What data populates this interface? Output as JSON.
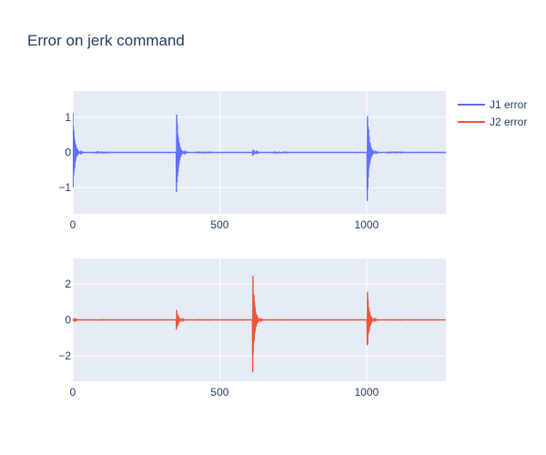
{
  "chart_data": {
    "type": "line",
    "title": "Error on jerk command",
    "legend_placement": "top-right",
    "grid": true,
    "colors": {
      "plot_bg": "#e5ecf6",
      "grid": "#ffffff",
      "text": "#2a3f5f"
    },
    "subplots": [
      {
        "xlim": [
          0,
          1270
        ],
        "ylim": [
          -1.75,
          1.75
        ],
        "xticks": [
          0,
          500,
          1000
        ],
        "yticks": [
          -1,
          0,
          1
        ],
        "ytick_labels": [
          "−1",
          "0",
          "1"
        ],
        "series": [
          {
            "name": "J1 error",
            "color": "#636efa",
            "baseline": 0,
            "events": [
              {
                "x": 0,
                "amp": 1.3
              },
              {
                "x": 352,
                "amp": 1.7
              },
              {
                "x": 612,
                "amp": 0.12
              },
              {
                "x": 1002,
                "amp": 1.6
              }
            ]
          }
        ]
      },
      {
        "xlim": [
          0,
          1270
        ],
        "ylim": [
          -3.4,
          3.4
        ],
        "xticks": [
          0,
          500,
          1000
        ],
        "yticks": [
          -2,
          0,
          2
        ],
        "ytick_labels": [
          "−2",
          "0",
          "2"
        ],
        "series": [
          {
            "name": "J2 error",
            "color": "#ef553b",
            "baseline": 0,
            "events": [
              {
                "x": 0,
                "amp": 0.1
              },
              {
                "x": 352,
                "amp": 0.8
              },
              {
                "x": 612,
                "amp": 3.1
              },
              {
                "x": 1002,
                "amp": 2.0
              }
            ]
          }
        ]
      }
    ]
  }
}
